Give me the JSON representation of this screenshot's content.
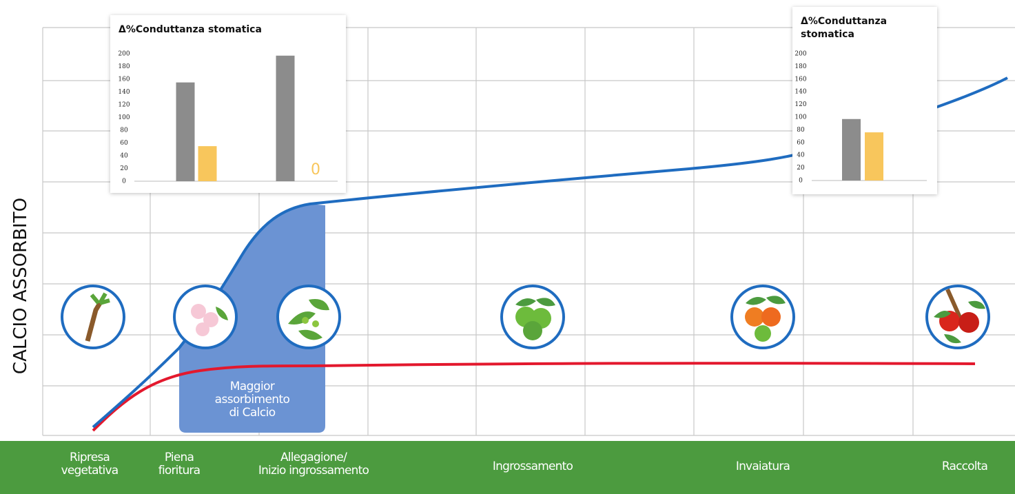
{
  "diagram": {
    "y_label": "CALCIO ASSORBITO",
    "stages": [
      "Ripresa\nvegetativa",
      "Piena\nfioritura",
      "Allegagione/\nInizio ingrossamento",
      "Ingrossamento",
      "Invaiatura",
      "Raccolta"
    ],
    "annotation": "Maggior\nassorbimento\ndi Calcio"
  },
  "chart_data": [
    {
      "type": "bar",
      "title": "Δ%Conduttanza stomatica",
      "categories": [
        null,
        null
      ],
      "series": [
        {
          "color": "#8c8c8c",
          "values": [
            155,
            197
          ]
        },
        {
          "color": "#f8c65c",
          "values": [
            55,
            0
          ],
          "value_labels": [
            null,
            "0"
          ]
        }
      ],
      "ylim": [
        0,
        200
      ],
      "yticks": [
        0,
        20,
        40,
        60,
        80,
        100,
        120,
        140,
        160,
        180,
        200
      ]
    },
    {
      "type": "bar",
      "title": "Δ%Conduttanza stomatica",
      "categories": [
        null
      ],
      "series": [
        {
          "color": "#8c8c8c",
          "values": [
            97
          ]
        },
        {
          "color": "#f8c65c",
          "values": [
            76
          ]
        }
      ],
      "ylim": [
        0,
        200
      ],
      "yticks": [
        0,
        20,
        40,
        60,
        80,
        100,
        120,
        140,
        160,
        180,
        200
      ]
    }
  ]
}
